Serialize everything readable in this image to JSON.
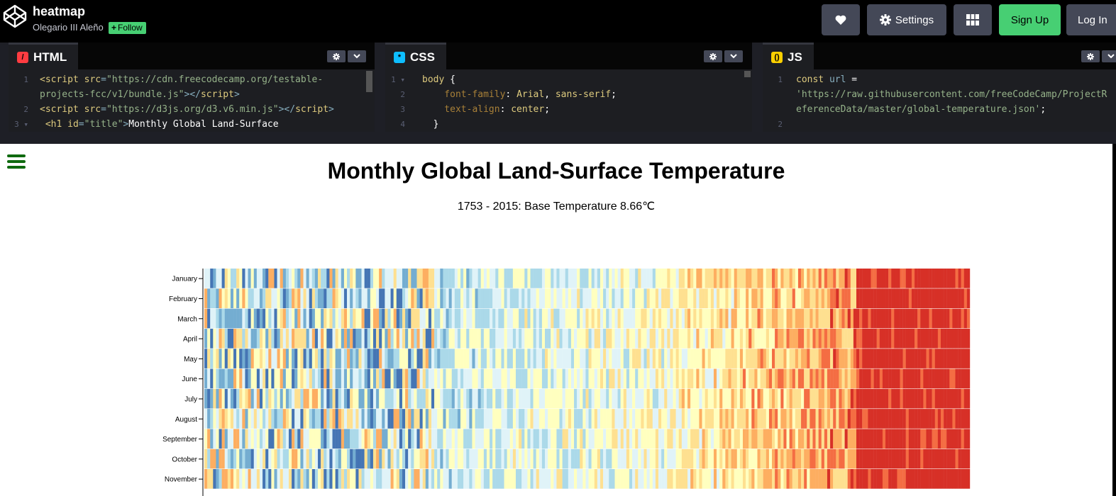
{
  "header": {
    "pen_title": "heatmap",
    "author": "Olegario III Aleño",
    "follow_label": "Follow",
    "settings_label": "Settings",
    "signup_label": "Sign Up",
    "login_label": "Log In"
  },
  "editors": {
    "html": {
      "label": "HTML",
      "lines": [
        {
          "num": "1",
          "parts": [
            [
              "c-tag",
              "<script "
            ],
            [
              "c-attr",
              "src"
            ],
            [
              "c-punct",
              "="
            ],
            [
              "c-str",
              "\"https://cdn.freecodecamp.org/testable-"
            ]
          ]
        },
        {
          "num": "",
          "parts": [
            [
              "c-str",
              "projects-fcc/v1/bundle.js\""
            ],
            [
              "c-punct",
              "></"
            ],
            [
              "c-tag",
              "script"
            ],
            [
              "c-punct",
              ">"
            ]
          ]
        },
        {
          "num": "2",
          "parts": [
            [
              "c-tag",
              "<script "
            ],
            [
              "c-attr",
              "src"
            ],
            [
              "c-punct",
              "="
            ],
            [
              "c-str",
              "\"https://d3js.org/d3.v6.min.js\""
            ],
            [
              "c-punct",
              "></"
            ],
            [
              "c-tag",
              "script"
            ],
            [
              "c-punct",
              ">"
            ]
          ]
        },
        {
          "num": "3 ▾",
          "parts": [
            [
              "c-tag",
              " <h1 "
            ],
            [
              "c-attr",
              "id"
            ],
            [
              "c-punct",
              "="
            ],
            [
              "c-str",
              "\"title\""
            ],
            [
              "c-punct",
              ">"
            ],
            [
              "c-plain",
              "Monthly Global Land-Surface"
            ]
          ]
        }
      ]
    },
    "css": {
      "label": "CSS",
      "lines": [
        {
          "num": "1 ▾",
          "parts": [
            [
              "c-sel",
              "body "
            ],
            [
              "c-plain",
              "{"
            ]
          ]
        },
        {
          "num": "2",
          "parts": [
            [
              "c-prop",
              "    font-family"
            ],
            [
              "c-plain",
              ": "
            ],
            [
              "c-kw",
              "Arial"
            ],
            [
              "c-plain",
              ", "
            ],
            [
              "c-kw",
              "sans-serif"
            ],
            [
              "c-plain",
              ";"
            ]
          ]
        },
        {
          "num": "3",
          "parts": [
            [
              "c-prop",
              "    text-align"
            ],
            [
              "c-plain",
              ": "
            ],
            [
              "c-kw",
              "center"
            ],
            [
              "c-plain",
              ";"
            ]
          ]
        },
        {
          "num": "4",
          "parts": [
            [
              "c-plain",
              "  }"
            ]
          ]
        }
      ]
    },
    "js": {
      "label": "JS",
      "lines": [
        {
          "num": "1",
          "parts": [
            [
              "c-kw",
              "const "
            ],
            [
              "c-var",
              "url "
            ],
            [
              "c-plain",
              "="
            ]
          ]
        },
        {
          "num": "",
          "parts": [
            [
              "c-str",
              "'https://raw.githubusercontent.com/freeCodeCamp/ProjectR"
            ]
          ]
        },
        {
          "num": "",
          "parts": [
            [
              "c-str",
              "eferenceData/master/global-temperature.json'"
            ],
            [
              "c-plain",
              ";"
            ]
          ]
        },
        {
          "num": "2",
          "parts": [
            [
              "c-plain",
              ""
            ]
          ]
        }
      ]
    }
  },
  "result": {
    "title": "Monthly Global Land-Surface Temperature",
    "description": "1753 - 2015: Base Temperature 8.66℃"
  },
  "chart_data": {
    "type": "heatmap",
    "title": "Monthly Global Land-Surface Temperature",
    "subtitle": "1753 - 2015: Base Temperature 8.66℃",
    "x": {
      "start": 1753,
      "end": 2015
    },
    "y_categories": [
      "January",
      "February",
      "March",
      "April",
      "May",
      "June",
      "July",
      "August",
      "September",
      "October",
      "November"
    ],
    "colors": [
      "#313695",
      "#4575b4",
      "#74add1",
      "#abd9e9",
      "#e0f3f8",
      "#ffffbf",
      "#fee090",
      "#fdae61",
      "#f46d43",
      "#d73027"
    ]
  }
}
